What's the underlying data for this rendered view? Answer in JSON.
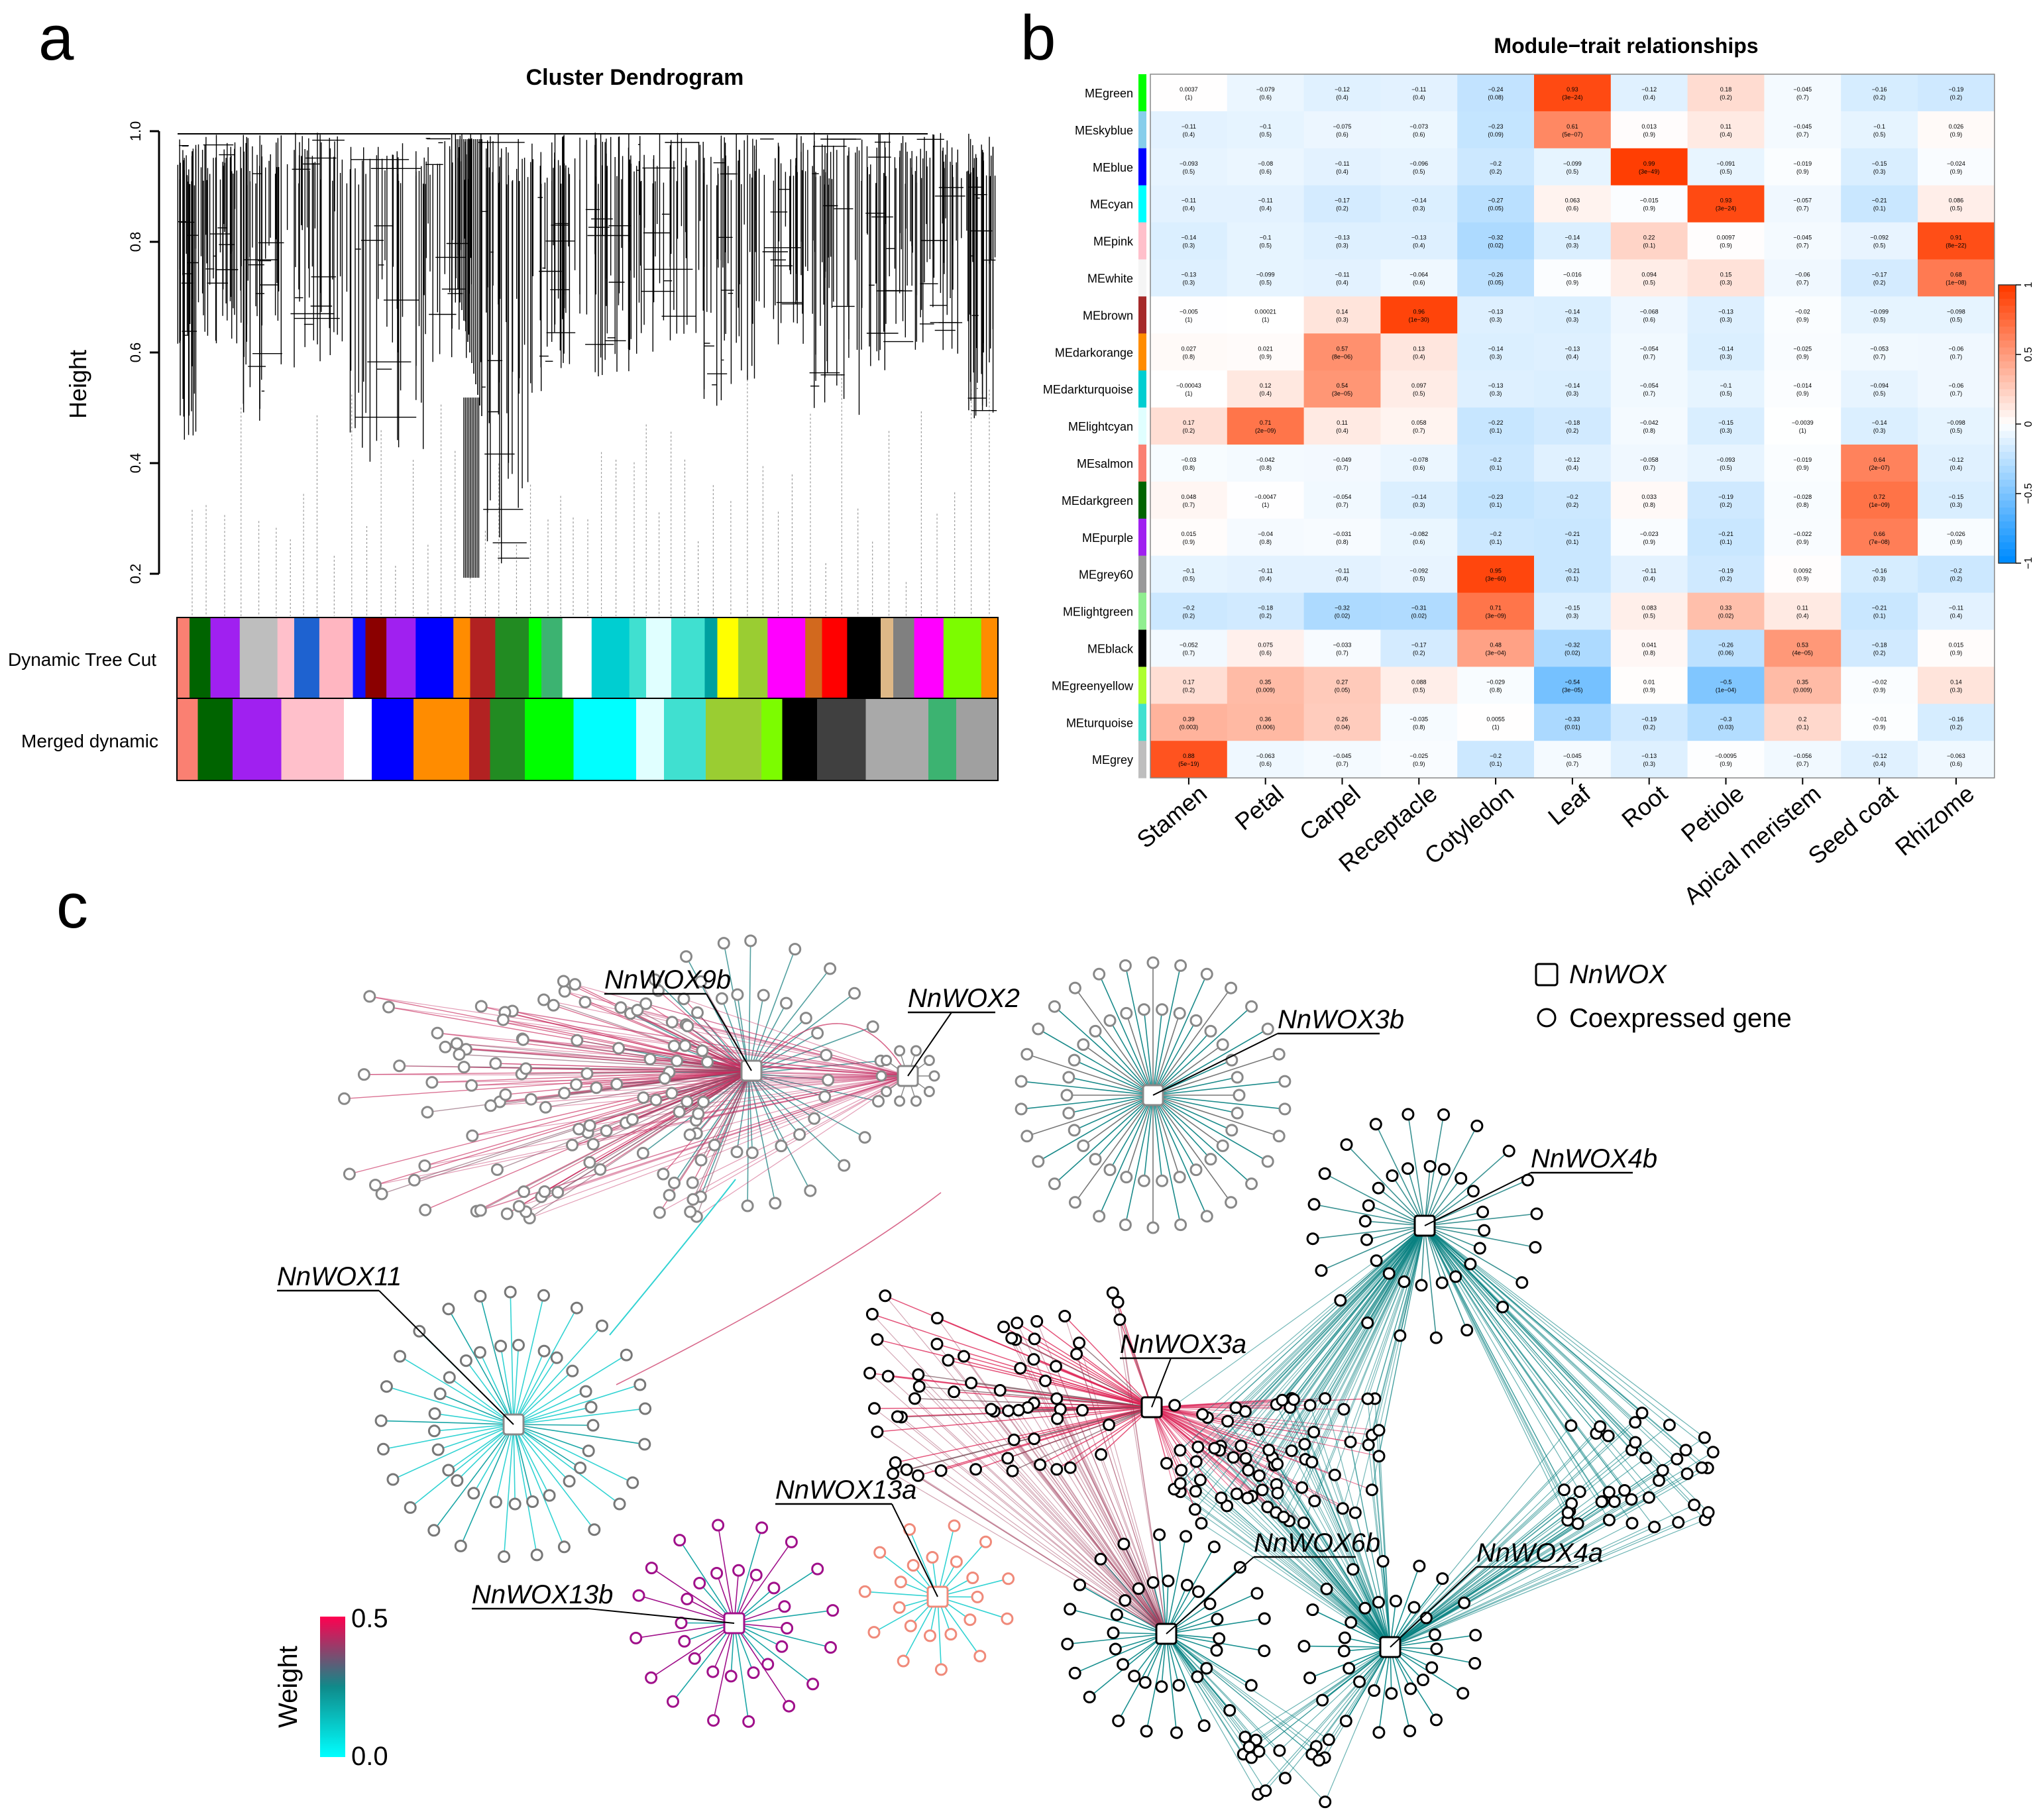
{
  "panels": {
    "a": {
      "label": "a",
      "title": "Cluster Dendrogram",
      "ylabel": "Height",
      "yticks": [
        "1.0",
        "0.8",
        "0.6",
        "0.4",
        "0.2"
      ],
      "row_labels": [
        "Dynamic Tree Cut",
        "Merged dynamic"
      ],
      "dynamic_colors": [
        "#fa8072",
        "#006400",
        "#a020f0",
        "#bebebe",
        "#ffc0cb",
        "#1e62d0",
        "#ffb6c1",
        "#1010ff",
        "#8b0000",
        "#a020f0",
        "#0000ff",
        "#ff8c00",
        "#b22222",
        "#228b22",
        "#00ff00",
        "#3cb371",
        "#ffffff",
        "#00ced1",
        "#40e0d0",
        "#e0ffff",
        "#40e0d0",
        "#00a0a0",
        "#ffff00",
        "#9acd32",
        "#ff00ff",
        "#d2691e",
        "#ff0000",
        "#000000",
        "#deb887",
        "#808080",
        "#ff00ff",
        "#7cfc00",
        "#ff8c00"
      ],
      "merged_colors": [
        "#fa8072",
        "#006400",
        "#a020f0",
        "#ffc0cb",
        "#ffffff",
        "#0000ff",
        "#ff8c00",
        "#b22222",
        "#228b22",
        "#00ff00",
        "#00ffff",
        "#e0ffff",
        "#40e0d0",
        "#9acd32",
        "#7cfc00",
        "#000000",
        "#404040",
        "#a9a9a9",
        "#3cb371",
        "#a0a0a0"
      ]
    },
    "b": {
      "label": "b",
      "title": "Module−trait relationships",
      "modules": [
        "MEgreen",
        "MEskyblue",
        "MEblue",
        "MEcyan",
        "MEpink",
        "MEwhite",
        "MEbrown",
        "MEdarkorange",
        "MEdarkturquoise",
        "MElightcyan",
        "MEsalmon",
        "MEdarkgreen",
        "MEpurple",
        "MEgrey60",
        "MElightgreen",
        "MEblack",
        "MEgreenyellow",
        "MEturquoise",
        "MEgrey"
      ],
      "module_colors": [
        "#00ff00",
        "#87ceeb",
        "#0000ff",
        "#00ffff",
        "#ffc0cb",
        "#f5f5f5",
        "#a52a2a",
        "#ff8c00",
        "#00ced1",
        "#e0ffff",
        "#fa8072",
        "#006400",
        "#a020f0",
        "#999999",
        "#90ee90",
        "#000000",
        "#adff2f",
        "#40e0d0",
        "#bebebe"
      ],
      "traits": [
        "Stamen",
        "Petal",
        "Carpel",
        "Receptacle",
        "Cotyledon",
        "Leaf",
        "Root",
        "Petiole",
        "Apical meristem",
        "Seed coat",
        "Rhizome"
      ],
      "colorbar_ticks": [
        "1",
        "0.5",
        "0",
        "−0.5",
        "−1"
      ]
    },
    "c": {
      "label": "c",
      "legend": {
        "wox_label": "NnWOX",
        "coexp_label": "Coexpressed gene"
      },
      "weight": {
        "title": "Weight",
        "max_label": "0.5",
        "min_label": "0.0"
      },
      "gene_labels": [
        "NnWOX9b",
        "NnWOX2",
        "NnWOX3b",
        "NnWOX4b",
        "NnWOX11",
        "NnWOX3a",
        "NnWOX13a",
        "NnWOX6b",
        "NnWOX4a",
        "NnWOX13b"
      ]
    }
  },
  "chart_data": [
    {
      "type": "heatmap",
      "title": "Module−trait relationships",
      "xlabel": "",
      "ylabel": "",
      "x": [
        "Stamen",
        "Petal",
        "Carpel",
        "Receptacle",
        "Cotyledon",
        "Leaf",
        "Root",
        "Petiole",
        "Apical meristem",
        "Seed coat",
        "Rhizome"
      ],
      "y": [
        "MEgreen",
        "MEskyblue",
        "MEblue",
        "MEcyan",
        "MEpink",
        "MEwhite",
        "MEbrown",
        "MEdarkorange",
        "MEdarkturquoise",
        "MElightcyan",
        "MEsalmon",
        "MEdarkgreen",
        "MEpurple",
        "MEgrey60",
        "MElightgreen",
        "MEblack",
        "MEgreenyellow",
        "MEturquoise",
        "MEgrey"
      ],
      "zlim": [
        -1,
        1
      ],
      "values": [
        [
          0.0037,
          -0.079,
          -0.12,
          -0.11,
          -0.24,
          0.93,
          -0.12,
          0.18,
          -0.045,
          -0.16,
          -0.19
        ],
        [
          -0.11,
          -0.1,
          -0.075,
          -0.073,
          -0.23,
          0.61,
          0.013,
          0.11,
          -0.045,
          -0.1,
          0.026
        ],
        [
          -0.093,
          -0.08,
          -0.11,
          -0.096,
          -0.2,
          -0.099,
          0.99,
          -0.091,
          -0.019,
          -0.15,
          -0.024
        ],
        [
          -0.11,
          -0.11,
          -0.17,
          -0.14,
          -0.27,
          0.063,
          -0.015,
          0.93,
          -0.057,
          -0.21,
          0.086
        ],
        [
          -0.14,
          -0.1,
          -0.13,
          -0.13,
          -0.32,
          -0.14,
          0.22,
          0.0097,
          -0.045,
          -0.092,
          0.91
        ],
        [
          -0.13,
          -0.099,
          -0.11,
          -0.064,
          -0.26,
          -0.016,
          0.094,
          0.15,
          -0.06,
          -0.17,
          0.68
        ],
        [
          -0.005,
          0.00021,
          0.14,
          0.96,
          -0.13,
          -0.14,
          -0.068,
          -0.13,
          -0.02,
          -0.099,
          -0.098
        ],
        [
          0.027,
          0.021,
          0.57,
          0.13,
          -0.14,
          -0.13,
          -0.054,
          -0.14,
          -0.025,
          -0.053,
          -0.06
        ],
        [
          -0.00043,
          0.12,
          0.54,
          0.097,
          -0.13,
          -0.14,
          -0.054,
          -0.1,
          -0.014,
          -0.094,
          -0.06
        ],
        [
          0.17,
          0.71,
          0.11,
          0.058,
          -0.22,
          -0.18,
          -0.042,
          -0.15,
          -0.0039,
          -0.14,
          -0.098
        ],
        [
          -0.03,
          -0.042,
          -0.049,
          -0.078,
          -0.2,
          -0.12,
          -0.058,
          -0.093,
          -0.019,
          0.64,
          -0.12
        ],
        [
          0.048,
          -0.0047,
          -0.054,
          -0.14,
          -0.23,
          -0.2,
          0.033,
          -0.19,
          -0.028,
          0.72,
          -0.15
        ],
        [
          0.015,
          -0.04,
          -0.031,
          -0.082,
          -0.2,
          -0.21,
          -0.023,
          -0.21,
          -0.022,
          0.66,
          -0.026
        ],
        [
          -0.1,
          -0.11,
          -0.11,
          -0.092,
          0.95,
          -0.21,
          -0.11,
          -0.19,
          0.0092,
          -0.16,
          -0.2
        ],
        [
          -0.2,
          -0.18,
          -0.32,
          -0.31,
          0.71,
          -0.15,
          0.083,
          0.33,
          0.11,
          -0.21,
          -0.11
        ],
        [
          -0.052,
          0.075,
          -0.033,
          -0.17,
          0.48,
          -0.32,
          0.041,
          -0.26,
          0.53,
          -0.18,
          0.015
        ],
        [
          0.17,
          0.35,
          0.27,
          0.088,
          -0.029,
          -0.54,
          0.01,
          -0.5,
          0.35,
          -0.02,
          0.14
        ],
        [
          0.39,
          0.36,
          0.26,
          -0.035,
          0.0055,
          -0.33,
          -0.19,
          -0.3,
          0.2,
          -0.01,
          -0.16
        ],
        [
          0.88,
          -0.063,
          -0.045,
          -0.025,
          -0.2,
          -0.045,
          -0.13,
          -0.0095,
          -0.056,
          -0.12,
          -0.063
        ]
      ],
      "pvalues": [
        [
          "(1)",
          "(0.6)",
          "(0.4)",
          "(0.4)",
          "(0.08)",
          "(3e−24)",
          "(0.4)",
          "(0.2)",
          "(0.7)",
          "(0.2)",
          "(0.2)"
        ],
        [
          "(0.4)",
          "(0.5)",
          "(0.6)",
          "(0.6)",
          "(0.09)",
          "(5e−07)",
          "(0.9)",
          "(0.4)",
          "(0.7)",
          "(0.5)",
          "(0.9)"
        ],
        [
          "(0.5)",
          "(0.6)",
          "(0.4)",
          "(0.5)",
          "(0.2)",
          "(0.5)",
          "(3e−49)",
          "(0.5)",
          "(0.9)",
          "(0.3)",
          "(0.9)"
        ],
        [
          "(0.4)",
          "(0.4)",
          "(0.2)",
          "(0.3)",
          "(0.05)",
          "(0.6)",
          "(0.9)",
          "(3e−24)",
          "(0.7)",
          "(0.1)",
          "(0.5)"
        ],
        [
          "(0.3)",
          "(0.5)",
          "(0.3)",
          "(0.4)",
          "(0.02)",
          "(0.3)",
          "(0.1)",
          "(0.9)",
          "(0.7)",
          "(0.5)",
          "(8e−22)"
        ],
        [
          "(0.3)",
          "(0.5)",
          "(0.4)",
          "(0.6)",
          "(0.05)",
          "(0.9)",
          "(0.5)",
          "(0.3)",
          "(0.7)",
          "(0.2)",
          "(1e−08)"
        ],
        [
          "(1)",
          "(1)",
          "(0.3)",
          "(1e−30)",
          "(0.3)",
          "(0.3)",
          "(0.6)",
          "(0.3)",
          "(0.9)",
          "(0.5)",
          "(0.5)"
        ],
        [
          "(0.8)",
          "(0.9)",
          "(8e−06)",
          "(0.4)",
          "(0.3)",
          "(0.4)",
          "(0.7)",
          "(0.3)",
          "(0.9)",
          "(0.7)",
          "(0.7)"
        ],
        [
          "(1)",
          "(0.4)",
          "(3e−05)",
          "(0.5)",
          "(0.3)",
          "(0.3)",
          "(0.7)",
          "(0.5)",
          "(0.9)",
          "(0.5)",
          "(0.7)"
        ],
        [
          "(0.2)",
          "(2e−09)",
          "(0.4)",
          "(0.7)",
          "(0.1)",
          "(0.2)",
          "(0.8)",
          "(0.3)",
          "(1)",
          "(0.3)",
          "(0.5)"
        ],
        [
          "(0.8)",
          "(0.8)",
          "(0.7)",
          "(0.6)",
          "(0.1)",
          "(0.4)",
          "(0.7)",
          "(0.5)",
          "(0.9)",
          "(2e−07)",
          "(0.4)"
        ],
        [
          "(0.7)",
          "(1)",
          "(0.7)",
          "(0.3)",
          "(0.1)",
          "(0.2)",
          "(0.8)",
          "(0.2)",
          "(0.8)",
          "(1e−09)",
          "(0.3)"
        ],
        [
          "(0.9)",
          "(0.8)",
          "(0.8)",
          "(0.6)",
          "(0.1)",
          "(0.1)",
          "(0.9)",
          "(0.1)",
          "(0.9)",
          "(7e−08)",
          "(0.9)"
        ],
        [
          "(0.5)",
          "(0.4)",
          "(0.4)",
          "(0.5)",
          "(3e−60)",
          "(0.1)",
          "(0.4)",
          "(0.2)",
          "(0.9)",
          "(0.3)",
          "(0.2)"
        ],
        [
          "(0.2)",
          "(0.2)",
          "(0.02)",
          "(0.02)",
          "(3e−09)",
          "(0.3)",
          "(0.5)",
          "(0.02)",
          "(0.4)",
          "(0.1)",
          "(0.4)"
        ],
        [
          "(0.7)",
          "(0.6)",
          "(0.7)",
          "(0.2)",
          "(3e−04)",
          "(0.02)",
          "(0.8)",
          "(0.06)",
          "(4e−05)",
          "(0.2)",
          "(0.9)"
        ],
        [
          "(0.2)",
          "(0.009)",
          "(0.05)",
          "(0.5)",
          "(0.8)",
          "(3e−05)",
          "(0.9)",
          "(1e−04)",
          "(0.009)",
          "(0.9)",
          "(0.3)"
        ],
        [
          "(0.003)",
          "(0.006)",
          "(0.04)",
          "(0.8)",
          "(1)",
          "(0.01)",
          "(0.2)",
          "(0.03)",
          "(0.1)",
          "(0.9)",
          "(0.2)"
        ],
        [
          "(5e−19)",
          "(0.6)",
          "(0.7)",
          "(0.9)",
          "(0.1)",
          "(0.7)",
          "(0.3)",
          "(0.9)",
          "(0.7)",
          "(0.4)",
          "(0.6)"
        ]
      ]
    }
  ]
}
